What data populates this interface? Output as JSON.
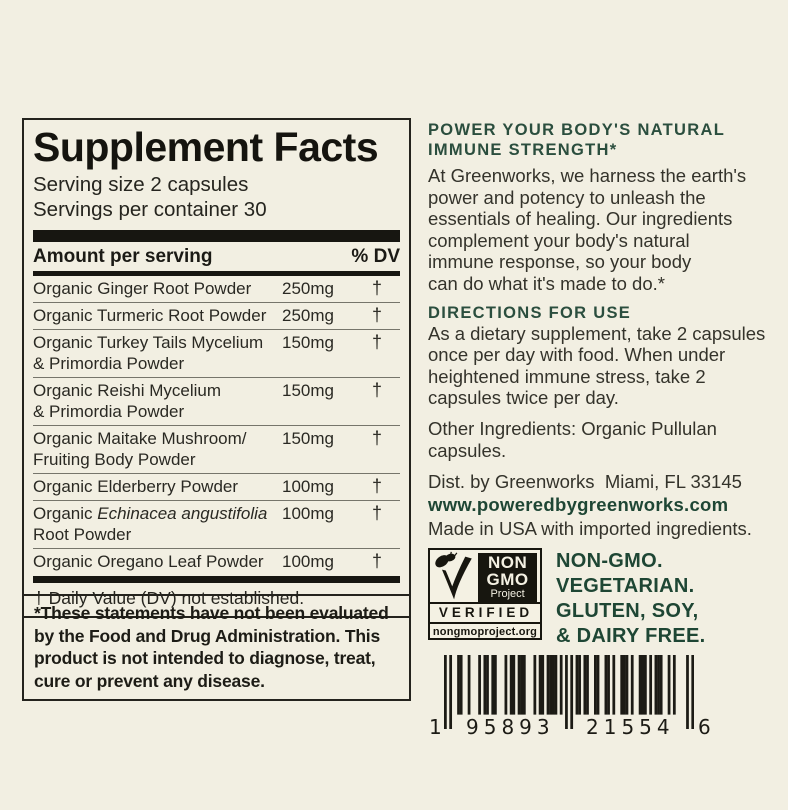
{
  "colors": {
    "background": "#f2efe2",
    "accent_green": "#2b4e3e",
    "link_green": "#1e4634",
    "ink_black": "#17160f"
  },
  "supplement_facts": {
    "title": "Supplement Facts",
    "serving_size": "Serving size 2 capsules",
    "servings_per_container": "Servings per container 30",
    "amount_header": "Amount per serving",
    "dv_header": "% DV",
    "rows": [
      {
        "name": "Organic Ginger Root Powder",
        "amount": "250mg",
        "dv": "†"
      },
      {
        "name": "Organic Turmeric Root Powder",
        "amount": "250mg",
        "dv": "†"
      },
      {
        "name": "Organic Turkey Tails Mycelium",
        "name2": "& Primordia Powder",
        "amount": "150mg",
        "dv": "†"
      },
      {
        "name": "Organic Reishi Mycelium",
        "name2": "& Primordia Powder",
        "amount": "150mg",
        "dv": "†"
      },
      {
        "name": "Organic Maitake Mushroom/",
        "name2": "Fruiting Body Powder",
        "amount": "150mg",
        "dv": "†"
      },
      {
        "name": "Organic Elderberry Powder",
        "amount": "100mg",
        "dv": "†"
      },
      {
        "name": "Organic ",
        "name_italic": "Echinacea angustifolia",
        "name2": "Root Powder",
        "amount": "100mg",
        "dv": "†"
      },
      {
        "name": "Organic Oregano Leaf Powder",
        "amount": "100mg",
        "dv": "†"
      }
    ],
    "footnote": "† Daily Value (DV) not established."
  },
  "disclaimer": "*These statements have not been evaluated\nby the Food and Drug Administration. This\nproduct is not intended to diagnose, treat,\ncure or prevent any disease.",
  "marketing": {
    "headline": "POWER YOUR BODY'S NATURAL\nIMMUNE STRENGTH*",
    "body": "At Greenworks, we harness the earth's\npower and potency to unleash the\nessentials of healing. Our ingredients\ncomplement your body's natural\nimmune response, so your body\ncan do what it's made to do.*",
    "directions_title": "DIRECTIONS FOR USE",
    "directions_body": "As a dietary supplement, take 2 capsules\nonce per day with food. When under\nheightened immune stress, take 2\ncapsules twice per day.",
    "other_ingredients": "Other Ingredients: Organic Pullulan\ncapsules.",
    "distributor": "Dist. by Greenworks  Miami, FL 33145",
    "website": "www.poweredbygreenworks.com",
    "made_in": "Made in USA with imported ingredients."
  },
  "nongmo": {
    "word1": "NON",
    "word2": "GMO",
    "word3": "Project",
    "verified": "VERIFIED",
    "url": "nongmoproject.org"
  },
  "badges": {
    "lines": [
      "NON-GMO.",
      "VEGETARIAN.",
      "GLUTEN, SOY,",
      "& DAIRY FREE."
    ]
  },
  "barcode": {
    "digits": "195893215546",
    "display_left": "1",
    "display_group1": "95893",
    "display_group2": "21554",
    "display_right": "6"
  }
}
